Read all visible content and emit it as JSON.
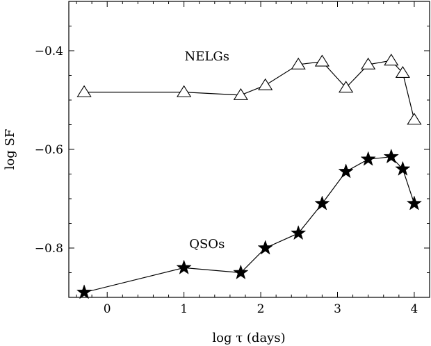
{
  "chart_data": {
    "type": "scatter",
    "title": "",
    "xlabel": "log τ (days)",
    "ylabel": "log SF",
    "xlim": [
      -0.5,
      4.2
    ],
    "ylim": [
      -0.9,
      -0.3
    ],
    "xticks": [
      0,
      1,
      2,
      3,
      4
    ],
    "xtick_labels": [
      "0",
      "1",
      "2",
      "3",
      "4"
    ],
    "yticks": [
      -0.4,
      -0.6,
      -0.8
    ],
    "ytick_labels": [
      "−0.4",
      "−0.6",
      "−0.8"
    ],
    "grid": false,
    "series": [
      {
        "name": "NELGs",
        "marker": "open-triangle",
        "x": [
          -0.3,
          1.0,
          1.74,
          2.06,
          2.49,
          2.8,
          3.11,
          3.4,
          3.7,
          3.85,
          4.0
        ],
        "y": [
          -0.484,
          -0.484,
          -0.49,
          -0.47,
          -0.428,
          -0.422,
          -0.475,
          -0.428,
          -0.42,
          -0.445,
          -0.54
        ]
      },
      {
        "name": "QSOs",
        "marker": "filled-star",
        "x": [
          -0.3,
          1.0,
          1.74,
          2.06,
          2.49,
          2.8,
          3.11,
          3.4,
          3.7,
          3.85,
          4.0
        ],
        "y": [
          -0.89,
          -0.84,
          -0.85,
          -0.8,
          -0.77,
          -0.71,
          -0.645,
          -0.62,
          -0.615,
          -0.64,
          -0.71
        ]
      }
    ],
    "annotations": [
      {
        "text": "NELGs",
        "x": 1.3,
        "y": -0.42
      },
      {
        "text": "QSOs",
        "x": 1.3,
        "y": -0.8
      }
    ]
  }
}
